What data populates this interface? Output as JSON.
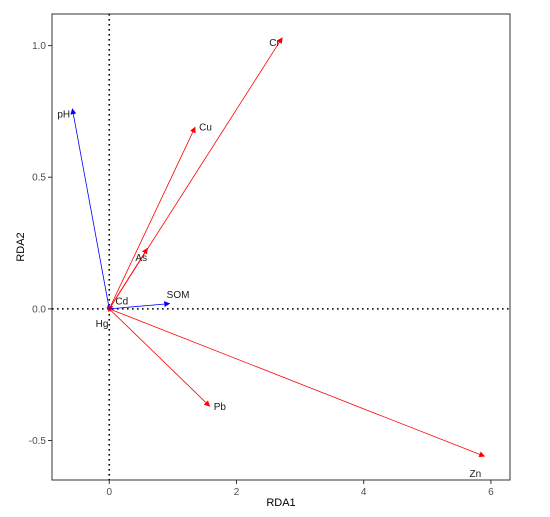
{
  "chart_data": {
    "type": "scatter",
    "title": "",
    "xlabel": "RDA1",
    "ylabel": "RDA2",
    "xlim": [
      -0.9,
      6.3
    ],
    "ylim": [
      -0.65,
      1.12
    ],
    "xticks": [
      0,
      2,
      4,
      6
    ],
    "yticks": [
      -0.5,
      0.0,
      0.5,
      1.0
    ],
    "xtick_labels": [
      "0",
      "2",
      "4",
      "6"
    ],
    "ytick_labels": [
      "-0.5",
      "0.0",
      "0.5",
      "1.0"
    ],
    "reference_lines": {
      "x": 0,
      "y": 0,
      "style": "dotted"
    },
    "grid": false,
    "series": [
      {
        "name": "",
        "color": "#ff0000",
        "points": [
          {
            "label": "Cr",
            "x": 2.72,
            "y": 1.03
          },
          {
            "label": "Cu",
            "x": 1.35,
            "y": 0.69
          },
          {
            "label": "As",
            "x": 0.6,
            "y": 0.23
          },
          {
            "label": "Cd",
            "x": 0.05,
            "y": 0.01
          },
          {
            "label": "Hg",
            "x": -0.01,
            "y": -0.01
          },
          {
            "label": "Pb",
            "x": 1.58,
            "y": -0.37
          },
          {
            "label": "Zn",
            "x": 5.9,
            "y": -0.56
          }
        ]
      },
      {
        "name": "",
        "color": "#0000ff",
        "points": [
          {
            "label": "pH",
            "x": -0.58,
            "y": 0.76
          },
          {
            "label": "SOM",
            "x": 0.95,
            "y": 0.02
          }
        ]
      }
    ]
  }
}
